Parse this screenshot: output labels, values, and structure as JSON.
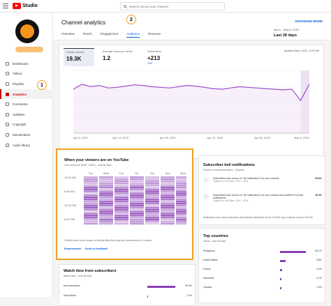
{
  "app": {
    "logo_text": "Studio"
  },
  "search": {
    "placeholder": "Search across your channel"
  },
  "sidebar": {
    "items": [
      {
        "label": "Dashboard",
        "active": false
      },
      {
        "label": "Videos",
        "active": false
      },
      {
        "label": "Playlists",
        "active": false
      },
      {
        "label": "Analytics",
        "active": true
      },
      {
        "label": "Comments",
        "active": false
      },
      {
        "label": "Subtitles",
        "active": false
      },
      {
        "label": "Copyright",
        "active": false
      },
      {
        "label": "Monetization",
        "active": false
      },
      {
        "label": "Audio library",
        "active": false
      }
    ]
  },
  "callouts": {
    "one": "1",
    "two": "2"
  },
  "header": {
    "title": "Channel analytics",
    "advanced_label": "ADVANCED MODE",
    "tabs": [
      "Overview",
      "Reach",
      "Engagement",
      "Audience",
      "Revenue"
    ],
    "active_tab": "Audience",
    "date_range": "Apr 8 – May 5, 2020",
    "date_select": "Last 28 days"
  },
  "metrics": {
    "updated": "Updated May 6, 2020, 12:00 AM",
    "unique_viewers": {
      "label": "Unique viewers",
      "value": "19.3K"
    },
    "avg_views": {
      "label": "Average views per viewer",
      "value": "1.2"
    },
    "subscribers": {
      "label": "Subscribers",
      "value": "+213",
      "change": "75%"
    },
    "see_more": "SEE MORE"
  },
  "chart_data": {
    "type": "line",
    "x_tick_labels": [
      "Apr 8, 2020",
      "Apr 13, 2020",
      "Apr 18, 2020",
      "Apr 23, 2020",
      "Apr 28, 2020",
      "May 4, 2020"
    ],
    "series": [
      {
        "values": [
          700,
          780,
          740,
          760,
          720,
          730,
          750,
          770,
          760,
          740,
          730,
          720,
          740,
          760,
          750,
          730,
          710,
          700,
          720,
          740,
          730,
          720,
          710,
          700,
          690,
          700,
          520,
          780
        ]
      }
    ],
    "ylim": [
      0,
      1000
    ],
    "grid": true
  },
  "viewers_card": {
    "title": "When your viewers are on YouTube",
    "subtitle": "Your local time (GMT +0000) · Last 28 days",
    "days": [
      "Tue",
      "Wed",
      "Thu",
      "Fri",
      "Sat",
      "Sun",
      "Mon"
    ],
    "hours": [
      "12:00 AM",
      "6:00 AM",
      "12:00 PM",
      "6:00 PM"
    ],
    "note": "Publish times is not known to directly affect the long-term performance of a video",
    "experimental": "Experimental",
    "feedback": "Send us feedback"
  },
  "bell_card": {
    "title": "Subscriber bell notifications",
    "subtitle": "Percent of total subscribers · Channel",
    "rows": [
      {
        "text": "Subscribers who turned on \"All notifications\" for your channel",
        "sub": "Typical on YouTube: 15% – 30%",
        "value": "29.6%"
      },
      {
        "text": "Subscribers who turned on \"All notifications\" for your channel and enabled YouTube notifications",
        "sub": "Typical on YouTube: 10% – 30%",
        "value": "18.4%"
      }
    ],
    "note": "Notifications can't reach subscribers with disabled notifications on the YouTube app or signed out from YouTube."
  },
  "countries_card": {
    "title": "Top countries",
    "subtitle": "Views · Last 28 days",
    "rows": [
      {
        "name": "Philippines",
        "value": "46.1%",
        "pct": 0.46
      },
      {
        "name": "United States",
        "value": "9.8%",
        "pct": 0.1
      },
      {
        "name": "France",
        "value": "3.3%",
        "pct": 0.04
      },
      {
        "name": "Indonesia",
        "value": "2.1%",
        "pct": 0.03
      },
      {
        "name": "Canada",
        "value": "1.9%",
        "pct": 0.02
      }
    ]
  },
  "watch_card": {
    "title": "Watch time from subscribers",
    "subtitle": "Watch time · Last 28 days",
    "rows": [
      {
        "name": "Not subscribed",
        "value": "99.0%",
        "pct": 0.99
      },
      {
        "name": "Subscribed",
        "value": "1.0%",
        "pct": 0.02
      }
    ]
  },
  "colors": {
    "accent": "#065fd4",
    "line": "#9b4dca",
    "highlight": "#f0a020",
    "brand": "#ff0000"
  }
}
